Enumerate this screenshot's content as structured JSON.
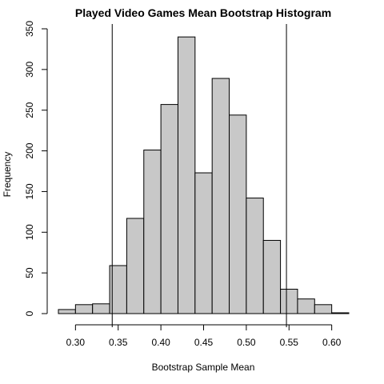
{
  "chart_data": {
    "type": "bar",
    "title": "Played Video Games Mean Bootstrap Histogram",
    "xlabel": "Bootstrap Sample Mean",
    "ylabel": "Frequency",
    "xlim": [
      0.28,
      0.62
    ],
    "ylim": [
      0,
      350
    ],
    "bin_edges": [
      0.28,
      0.3,
      0.32,
      0.34,
      0.36,
      0.38,
      0.4,
      0.42,
      0.44,
      0.46,
      0.48,
      0.5,
      0.52,
      0.54,
      0.56,
      0.58,
      0.6,
      0.62
    ],
    "values": [
      5,
      11,
      12,
      59,
      117,
      201,
      257,
      340,
      173,
      289,
      244,
      142,
      90,
      30,
      18,
      11,
      1
    ],
    "x_ticks": [
      0.3,
      0.35,
      0.4,
      0.45,
      0.5,
      0.55,
      0.6
    ],
    "x_tick_labels": [
      "0.30",
      "0.35",
      "0.40",
      "0.45",
      "0.50",
      "0.55",
      "0.60"
    ],
    "y_ticks": [
      0,
      50,
      100,
      150,
      200,
      250,
      300,
      350
    ],
    "y_tick_labels": [
      "0",
      "50",
      "100",
      "150",
      "200",
      "250",
      "300",
      "350"
    ],
    "vertical_lines": [
      0.343,
      0.547
    ],
    "grid": false,
    "legend": "none",
    "bar_color": "#c8c8c8"
  }
}
